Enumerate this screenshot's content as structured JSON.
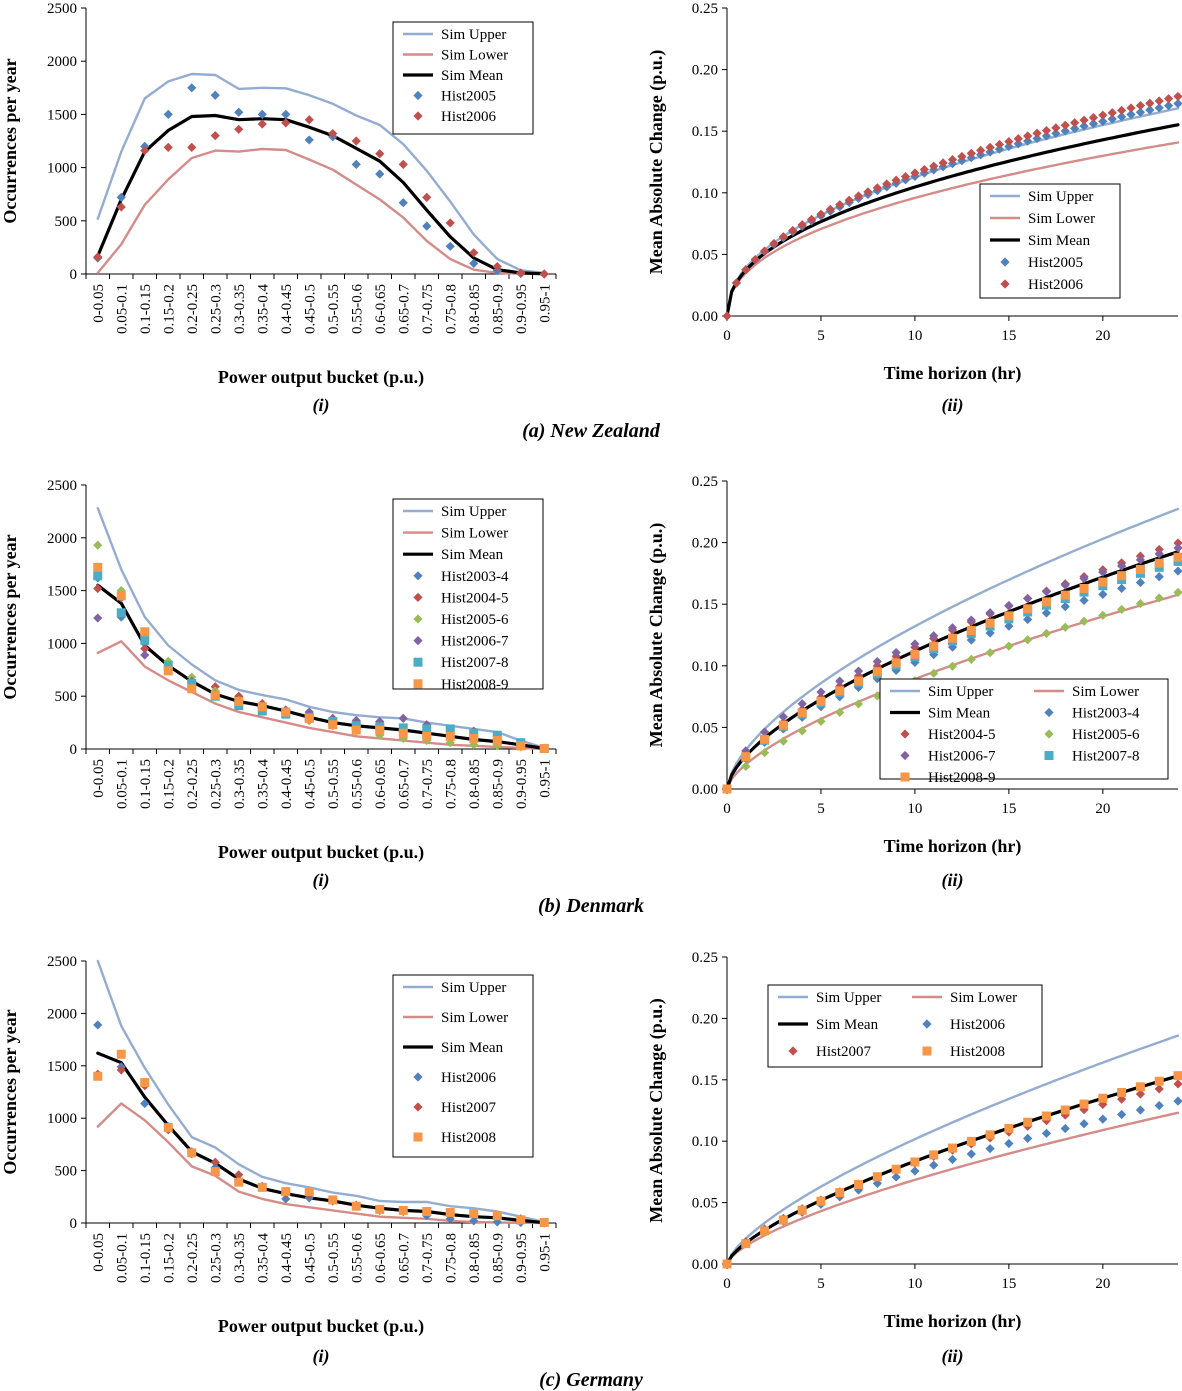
{
  "colors": {
    "sim_upper": "#94acd0",
    "sim_lower": "#d48c88",
    "sim_mean": "#000000",
    "blue": "#4f81bd",
    "red": "#c0504d",
    "green": "#9bbb59",
    "purple": "#8064a2",
    "teal": "#4bacc6",
    "orange": "#f79646"
  },
  "rows": [
    {
      "caption": "(a) New Zealand"
    },
    {
      "caption": "(b) Denmark"
    },
    {
      "caption": "(c) Germany"
    }
  ],
  "chart_data": [
    {
      "id": "nz-i",
      "type": "line",
      "subcaption": "(i)",
      "xlabel": "Power output bucket (p.u.)",
      "ylabel": "Occurrences per year",
      "ylim": [
        0,
        2500
      ],
      "yticks": [
        "0",
        "500",
        "1000",
        "1500",
        "2000",
        "2500"
      ],
      "ytick_values": [
        0,
        500,
        1000,
        1500,
        2000,
        2500
      ],
      "grid": false,
      "legend": "top-right",
      "categories": [
        "0-0.05",
        "0.05-0.1",
        "0.1-0.15",
        "0.15-0.2",
        "0.2-0.25",
        "0.25-0.3",
        "0.3-0.35",
        "0.35-0.4",
        "0.4-0.45",
        "0.45-0.5",
        "0.5-0.55",
        "0.55-0.6",
        "0.6-0.65",
        "0.65-0.7",
        "0.7-0.75",
        "0.75-0.8",
        "0.8-0.85",
        "0.85-0.9",
        "0.9-0.95",
        "0.95-1"
      ],
      "series": [
        {
          "name": "Sim Upper",
          "kind": "line",
          "color": "sim_upper",
          "values": [
            520,
            1150,
            1650,
            1810,
            1880,
            1870,
            1740,
            1750,
            1745,
            1680,
            1600,
            1490,
            1400,
            1220,
            970,
            680,
            370,
            140,
            35,
            10
          ]
        },
        {
          "name": "Sim Lower",
          "kind": "line",
          "color": "sim_lower",
          "values": [
            10,
            280,
            650,
            890,
            1090,
            1160,
            1150,
            1175,
            1165,
            1075,
            980,
            840,
            700,
            530,
            310,
            140,
            40,
            10,
            2,
            0
          ]
        },
        {
          "name": "Sim Mean",
          "kind": "line",
          "color": "sim_mean",
          "values": [
            170,
            700,
            1150,
            1350,
            1480,
            1490,
            1450,
            1460,
            1450,
            1380,
            1300,
            1180,
            1060,
            860,
            600,
            350,
            150,
            40,
            10,
            2
          ]
        },
        {
          "name": "Hist2005",
          "kind": "diamond",
          "color": "blue",
          "values": [
            150,
            720,
            1200,
            1500,
            1750,
            1680,
            1520,
            1500,
            1500,
            1260,
            1290,
            1030,
            940,
            670,
            450,
            260,
            100,
            30,
            5,
            0
          ]
        },
        {
          "name": "Hist2006",
          "kind": "diamond",
          "color": "red",
          "values": [
            160,
            630,
            1160,
            1190,
            1190,
            1300,
            1360,
            1410,
            1420,
            1450,
            1320,
            1250,
            1130,
            1030,
            720,
            480,
            200,
            70,
            10,
            0
          ]
        }
      ]
    },
    {
      "id": "nz-ii",
      "type": "scatter",
      "subcaption": "(ii)",
      "xlabel": "Time horizon (hr)",
      "ylabel": "Mean Absolute Change (p.u.)",
      "xlim": [
        0,
        24
      ],
      "ylim": [
        0,
        0.25
      ],
      "xticks": [
        "0",
        "5",
        "10",
        "15",
        "20"
      ],
      "xtick_values": [
        0,
        5,
        10,
        15,
        20
      ],
      "yticks": [
        "0.00",
        "0.05",
        "0.10",
        "0.15",
        "0.20",
        "0.25"
      ],
      "ytick_values": [
        0,
        0.05,
        0.1,
        0.15,
        0.2,
        0.25
      ],
      "grid": false,
      "legend": "center-right",
      "series": [
        {
          "name": "Sim Upper",
          "kind": "line",
          "color": "sim_upper",
          "ref": 0.155,
          "exp": 0.46
        },
        {
          "name": "Sim Lower",
          "kind": "line",
          "color": "sim_lower",
          "ref": 0.13,
          "exp": 0.44
        },
        {
          "name": "Sim Mean",
          "kind": "line",
          "color": "sim_mean",
          "ref": 0.143,
          "exp": 0.45
        },
        {
          "name": "Hist2005",
          "kind": "diamond",
          "color": "blue",
          "ref": 0.158,
          "exp": 0.48,
          "step": 0.5
        },
        {
          "name": "Hist2006",
          "kind": "diamond",
          "color": "red",
          "ref": 0.163,
          "exp": 0.49,
          "step": 0.5
        }
      ]
    },
    {
      "id": "dk-i",
      "type": "line",
      "subcaption": "(i)",
      "xlabel": "Power output bucket (p.u.)",
      "ylabel": "Occurrences per year",
      "ylim": [
        0,
        2500
      ],
      "yticks": [
        "0",
        "500",
        "1000",
        "1500",
        "2000",
        "2500"
      ],
      "ytick_values": [
        0,
        500,
        1000,
        1500,
        2000,
        2500
      ],
      "grid": false,
      "legend": "top-right",
      "categories": [
        "0-0.05",
        "0.05-0.1",
        "0.1-0.15",
        "0.15-0.2",
        "0.2-0.25",
        "0.25-0.3",
        "0.3-0.35",
        "0.35-0.4",
        "0.4-0.45",
        "0.45-0.5",
        "0.5-0.55",
        "0.55-0.6",
        "0.6-0.65",
        "0.65-0.7",
        "0.7-0.75",
        "0.75-0.8",
        "0.8-0.85",
        "0.85-0.9",
        "0.9-0.95",
        "0.95-1"
      ],
      "series": [
        {
          "name": "Sim Upper",
          "kind": "line",
          "color": "sim_upper",
          "values": [
            2280,
            1700,
            1250,
            980,
            800,
            650,
            560,
            510,
            470,
            400,
            350,
            320,
            300,
            290,
            250,
            220,
            190,
            160,
            80,
            10
          ]
        },
        {
          "name": "Sim Lower",
          "kind": "line",
          "color": "sim_lower",
          "values": [
            910,
            1020,
            780,
            650,
            540,
            430,
            350,
            300,
            250,
            200,
            160,
            120,
            100,
            80,
            60,
            40,
            30,
            20,
            10,
            0
          ]
        },
        {
          "name": "Sim Mean",
          "kind": "line",
          "color": "sim_mean",
          "values": [
            1550,
            1380,
            980,
            790,
            640,
            520,
            450,
            410,
            360,
            300,
            250,
            220,
            200,
            180,
            150,
            120,
            90,
            70,
            40,
            5
          ]
        },
        {
          "name": "Hist2003-4",
          "kind": "diamond",
          "color": "blue",
          "values": [
            1620,
            1250,
            1000,
            750,
            620,
            500,
            420,
            370,
            330,
            270,
            230,
            200,
            180,
            160,
            130,
            110,
            90,
            80,
            40,
            5
          ]
        },
        {
          "name": "Hist2004-5",
          "kind": "diamond",
          "color": "red",
          "values": [
            1520,
            1280,
            950,
            770,
            640,
            590,
            500,
            430,
            370,
            310,
            260,
            220,
            190,
            170,
            140,
            110,
            80,
            60,
            30,
            5
          ]
        },
        {
          "name": "Hist2005-6",
          "kind": "diamond",
          "color": "green",
          "values": [
            1930,
            1500,
            1060,
            830,
            680,
            550,
            460,
            400,
            350,
            270,
            220,
            170,
            130,
            100,
            80,
            60,
            40,
            30,
            20,
            5
          ]
        },
        {
          "name": "Hist2006-7",
          "kind": "diamond",
          "color": "purple",
          "values": [
            1240,
            1430,
            890,
            760,
            640,
            520,
            430,
            390,
            370,
            350,
            290,
            270,
            260,
            290,
            230,
            190,
            170,
            130,
            60,
            5
          ]
        },
        {
          "name": "Hist2007-8",
          "kind": "square",
          "color": "teal",
          "values": [
            1640,
            1290,
            1030,
            790,
            620,
            500,
            410,
            360,
            330,
            300,
            260,
            220,
            210,
            200,
            190,
            190,
            150,
            130,
            60,
            5
          ]
        },
        {
          "name": "Hist2008-9",
          "kind": "square",
          "color": "orange",
          "values": [
            1720,
            1450,
            1110,
            740,
            570,
            510,
            450,
            400,
            350,
            290,
            230,
            180,
            180,
            150,
            120,
            120,
            100,
            80,
            30,
            5
          ]
        }
      ]
    },
    {
      "id": "dk-ii",
      "type": "scatter",
      "subcaption": "(ii)",
      "xlabel": "Time horizon (hr)",
      "ylabel": "Mean Absolute Change (p.u.)",
      "xlim": [
        0,
        24
      ],
      "ylim": [
        0,
        0.25
      ],
      "xticks": [
        "0",
        "5",
        "10",
        "15",
        "20"
      ],
      "xtick_values": [
        0,
        5,
        10,
        15,
        20
      ],
      "yticks": [
        "0.00",
        "0.05",
        "0.10",
        "0.15",
        "0.20",
        "0.25"
      ],
      "ytick_values": [
        0,
        0.05,
        0.1,
        0.15,
        0.2,
        0.25
      ],
      "grid": false,
      "legend": "bottom-right",
      "series": [
        {
          "name": "Sim Upper",
          "kind": "line",
          "color": "sim_upper",
          "ref": 0.203,
          "exp": 0.62
        },
        {
          "name": "Sim Lower",
          "kind": "line",
          "color": "sim_lower",
          "ref": 0.14,
          "exp": 0.65
        },
        {
          "name": "Sim Mean",
          "kind": "line",
          "color": "sim_mean",
          "ref": 0.172,
          "exp": 0.62
        },
        {
          "name": "Hist2003-4",
          "kind": "diamond",
          "color": "blue",
          "ref": 0.158,
          "exp": 0.62,
          "step": 1
        },
        {
          "name": "Hist2004-5",
          "kind": "diamond",
          "color": "red",
          "ref": 0.178,
          "exp": 0.63,
          "step": 1
        },
        {
          "name": "Hist2005-6",
          "kind": "diamond",
          "color": "green",
          "ref": 0.141,
          "exp": 0.68,
          "step": 1
        },
        {
          "name": "Hist2006-7",
          "kind": "diamond",
          "color": "purple",
          "ref": 0.176,
          "exp": 0.58,
          "step": 1
        },
        {
          "name": "Hist2007-8",
          "kind": "square",
          "color": "teal",
          "ref": 0.165,
          "exp": 0.62,
          "step": 1
        },
        {
          "name": "Hist2008-9",
          "kind": "square",
          "color": "orange",
          "ref": 0.168,
          "exp": 0.62,
          "step": 1
        }
      ]
    },
    {
      "id": "de-i",
      "type": "line",
      "subcaption": "(i)",
      "xlabel": "Power output bucket (p.u.)",
      "ylabel": "Occurrences per year",
      "ylim": [
        0,
        2500
      ],
      "yticks": [
        "0",
        "500",
        "1000",
        "1500",
        "2000",
        "2500"
      ],
      "ytick_values": [
        0,
        500,
        1000,
        1500,
        2000,
        2500
      ],
      "grid": false,
      "legend": "top-right",
      "categories": [
        "0-0.05",
        "0.05-0.1",
        "0.1-0.15",
        "0.15-0.2",
        "0.2-0.25",
        "0.25-0.3",
        "0.3-0.35",
        "0.35-0.4",
        "0.4-0.45",
        "0.45-0.5",
        "0.5-0.55",
        "0.55-0.6",
        "0.6-0.65",
        "0.65-0.7",
        "0.7-0.75",
        "0.75-0.8",
        "0.8-0.85",
        "0.85-0.9",
        "0.9-0.95",
        "0.95-1"
      ],
      "series": [
        {
          "name": "Sim Upper",
          "kind": "line",
          "color": "sim_upper",
          "values": [
            2500,
            1880,
            1480,
            1130,
            820,
            720,
            560,
            440,
            380,
            340,
            290,
            260,
            210,
            200,
            200,
            160,
            140,
            110,
            60,
            10
          ]
        },
        {
          "name": "Sim Lower",
          "kind": "line",
          "color": "sim_lower",
          "values": [
            920,
            1140,
            980,
            770,
            540,
            450,
            300,
            230,
            180,
            150,
            120,
            90,
            60,
            50,
            40,
            20,
            10,
            5,
            2,
            0
          ]
        },
        {
          "name": "Sim Mean",
          "kind": "line",
          "color": "sim_mean",
          "values": [
            1620,
            1530,
            1200,
            930,
            680,
            570,
            420,
            330,
            280,
            240,
            210,
            170,
            140,
            120,
            110,
            80,
            60,
            50,
            25,
            3
          ]
        },
        {
          "name": "Hist2006",
          "kind": "diamond",
          "color": "blue",
          "values": [
            1890,
            1490,
            1140,
            920,
            680,
            530,
            400,
            340,
            230,
            240,
            220,
            160,
            130,
            110,
            70,
            40,
            20,
            10,
            5,
            0
          ]
        },
        {
          "name": "Hist2007",
          "kind": "diamond",
          "color": "red",
          "values": [
            1420,
            1460,
            1310,
            890,
            660,
            580,
            460,
            350,
            280,
            270,
            210,
            170,
            120,
            120,
            110,
            90,
            80,
            70,
            40,
            5
          ]
        },
        {
          "name": "Hist2008",
          "kind": "square",
          "color": "orange",
          "values": [
            1400,
            1610,
            1340,
            910,
            670,
            490,
            390,
            340,
            300,
            300,
            220,
            160,
            130,
            120,
            110,
            100,
            90,
            70,
            30,
            5
          ]
        }
      ]
    },
    {
      "id": "de-ii",
      "type": "scatter",
      "subcaption": "(ii)",
      "xlabel": "Time horizon (hr)",
      "ylabel": "Mean Absolute Change (p.u.)",
      "xlim": [
        0,
        24
      ],
      "ylim": [
        0,
        0.25
      ],
      "xticks": [
        "0",
        "5",
        "10",
        "15",
        "20"
      ],
      "xtick_values": [
        0,
        5,
        10,
        15,
        20
      ],
      "yticks": [
        "0.00",
        "0.05",
        "0.10",
        "0.15",
        "0.20",
        "0.25"
      ],
      "ytick_values": [
        0,
        0.05,
        0.1,
        0.15,
        0.2,
        0.25
      ],
      "grid": false,
      "legend": "top",
      "series": [
        {
          "name": "Sim Upper",
          "kind": "line",
          "color": "sim_upper",
          "ref": 0.164,
          "exp": 0.69
        },
        {
          "name": "Sim Lower",
          "kind": "line",
          "color": "sim_lower",
          "ref": 0.109,
          "exp": 0.67
        },
        {
          "name": "Sim Mean",
          "kind": "line",
          "color": "sim_mean",
          "ref": 0.135,
          "exp": 0.69
        },
        {
          "name": "Hist2006",
          "kind": "diamond",
          "color": "blue",
          "ref": 0.118,
          "exp": 0.64,
          "step": 1
        },
        {
          "name": "Hist2007",
          "kind": "diamond",
          "color": "red",
          "ref": 0.13,
          "exp": 0.66,
          "step": 1
        },
        {
          "name": "Hist2008",
          "kind": "square",
          "color": "orange",
          "ref": 0.135,
          "exp": 0.7,
          "step": 1
        }
      ]
    }
  ]
}
